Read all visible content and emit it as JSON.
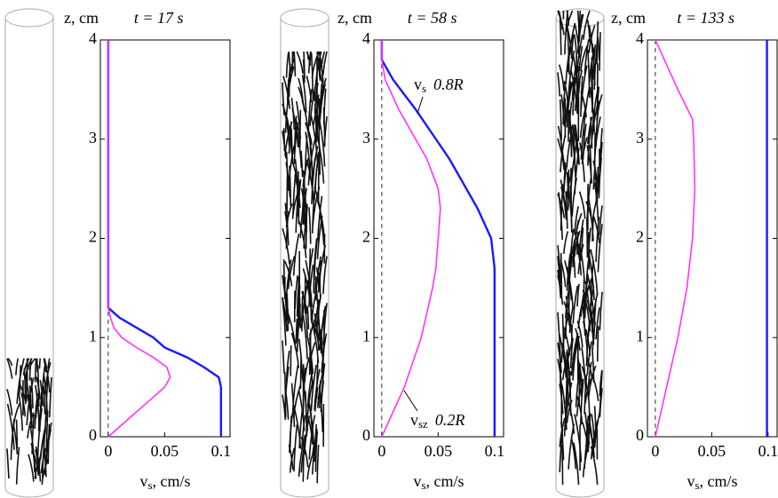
{
  "chart_data": [
    {
      "type": "line",
      "title": "t = 17 s",
      "ylabel": "z, cm",
      "xlabel": "v",
      "xlabel_sub": "s",
      "xlabel_unit": ", cm/s",
      "xlim": [
        -0.007,
        0.108
      ],
      "xticks": [
        0,
        0.05,
        0.1
      ],
      "ylim": [
        0,
        4
      ],
      "yticks": [
        0,
        1,
        2,
        3,
        4
      ],
      "y": [
        0,
        0.2,
        0.4,
        0.5,
        0.6,
        0.7,
        0.8,
        0.9,
        1.0,
        1.1,
        1.2,
        1.3,
        2,
        3,
        4
      ],
      "series": [
        {
          "color": "#1a1aff",
          "values": [
            0.1,
            0.1,
            0.1,
            0.1,
            0.098,
            0.085,
            0.07,
            0.05,
            0.04,
            0.025,
            0.01,
            0,
            0,
            0,
            0
          ]
        },
        {
          "color": "#ff33ff",
          "values": [
            0,
            0.02,
            0.04,
            0.05,
            0.055,
            0.052,
            0.04,
            0.025,
            0.012,
            0.005,
            0.002,
            0,
            0,
            0,
            0
          ]
        }
      ],
      "hair_height": 1.2
    },
    {
      "type": "line",
      "title": "t = 58 s",
      "ylabel": "z, cm",
      "xlabel": "v",
      "xlabel_sub": "s",
      "xlabel_unit": ", cm/s",
      "xlim": [
        -0.007,
        0.108
      ],
      "xticks": [
        0,
        0.05,
        0.1
      ],
      "ylim": [
        0,
        4
      ],
      "yticks": [
        0,
        1,
        2,
        3,
        4
      ],
      "y": [
        0,
        0.5,
        1,
        1.5,
        1.7,
        2,
        2.3,
        2.5,
        2.8,
        3,
        3.3,
        3.6,
        3.8,
        4
      ],
      "series": [
        {
          "color": "#1a1aff",
          "values": [
            0.1,
            0.1,
            0.1,
            0.1,
            0.1,
            0.097,
            0.085,
            0.075,
            0.06,
            0.048,
            0.03,
            0.01,
            0,
            0
          ]
        },
        {
          "color": "#ff33ff",
          "values": [
            0,
            0.02,
            0.035,
            0.045,
            0.048,
            0.05,
            0.052,
            0.05,
            0.04,
            0.03,
            0.015,
            0.003,
            0,
            0
          ]
        }
      ],
      "annotations": [
        {
          "symbol": "v",
          "sub": "s",
          "text": "0.8R"
        },
        {
          "symbol": "v",
          "sub": "sz",
          "text": "0.2R"
        }
      ],
      "hair_height": 4.2
    },
    {
      "type": "line",
      "title": "t = 133 s",
      "ylabel": "z, cm",
      "xlabel": "v",
      "xlabel_sub": "s",
      "xlabel_unit": ", cm/s",
      "xlim": [
        -0.007,
        0.108
      ],
      "xticks": [
        0,
        0.05,
        0.1
      ],
      "ylim": [
        0,
        4
      ],
      "yticks": [
        0,
        1,
        2,
        3,
        4
      ],
      "y": [
        0,
        0.5,
        1,
        1.5,
        2,
        2.5,
        3,
        3.2,
        3.5,
        3.8,
        4
      ],
      "series": [
        {
          "color": "#1a1aff",
          "values": [
            0.099,
            0.099,
            0.099,
            0.099,
            0.099,
            0.099,
            0.099,
            0.099,
            0.099,
            0.099,
            0.099
          ]
        },
        {
          "color": "#ff33ff",
          "values": [
            0,
            0.01,
            0.02,
            0.028,
            0.033,
            0.035,
            0.034,
            0.033,
            0.02,
            0.008,
            0
          ]
        }
      ],
      "hair_height": 4.6
    }
  ]
}
